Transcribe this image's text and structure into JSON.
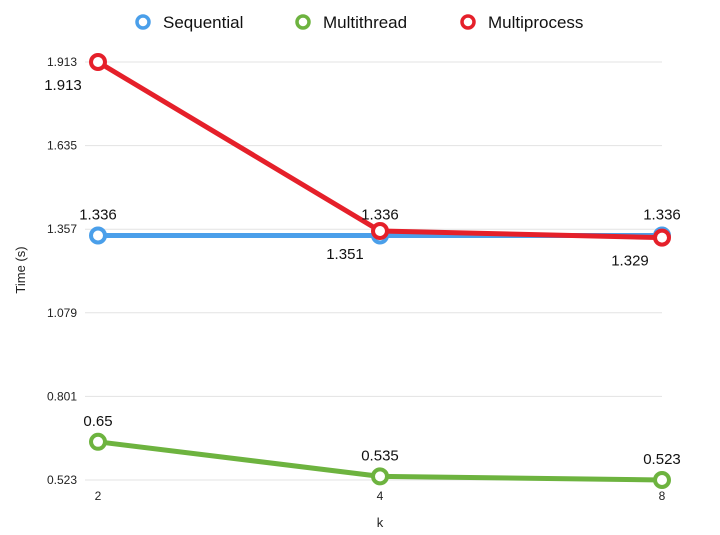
{
  "chart_data": {
    "type": "line",
    "title": "",
    "xlabel": "k",
    "ylabel": "Time (s)",
    "categories": [
      "2",
      "4",
      "8"
    ],
    "y_ticks": [
      "0.523",
      "0.801",
      "1.079",
      "1.357",
      "1.635",
      "1.913"
    ],
    "ylim": [
      0.523,
      1.913
    ],
    "grid": true,
    "legend_position": "top-center",
    "series": [
      {
        "name": "Sequential",
        "color": "#4a9fea",
        "values": [
          1.336,
          1.336,
          1.336
        ],
        "labels": [
          "1.336",
          "1.336",
          "1.336"
        ],
        "label_side": [
          "above",
          "above",
          "above"
        ]
      },
      {
        "name": "Multithread",
        "color": "#6db33f",
        "values": [
          0.65,
          0.535,
          0.523
        ],
        "labels": [
          "0.65",
          "0.535",
          "0.523"
        ],
        "label_side": [
          "above",
          "above",
          "above"
        ]
      },
      {
        "name": "Multiprocess",
        "color": "#e5202a",
        "values": [
          1.913,
          1.351,
          1.329
        ],
        "labels": [
          "1.913",
          "1.351",
          "1.329"
        ],
        "label_side": [
          "below",
          "below",
          "below"
        ]
      }
    ]
  }
}
